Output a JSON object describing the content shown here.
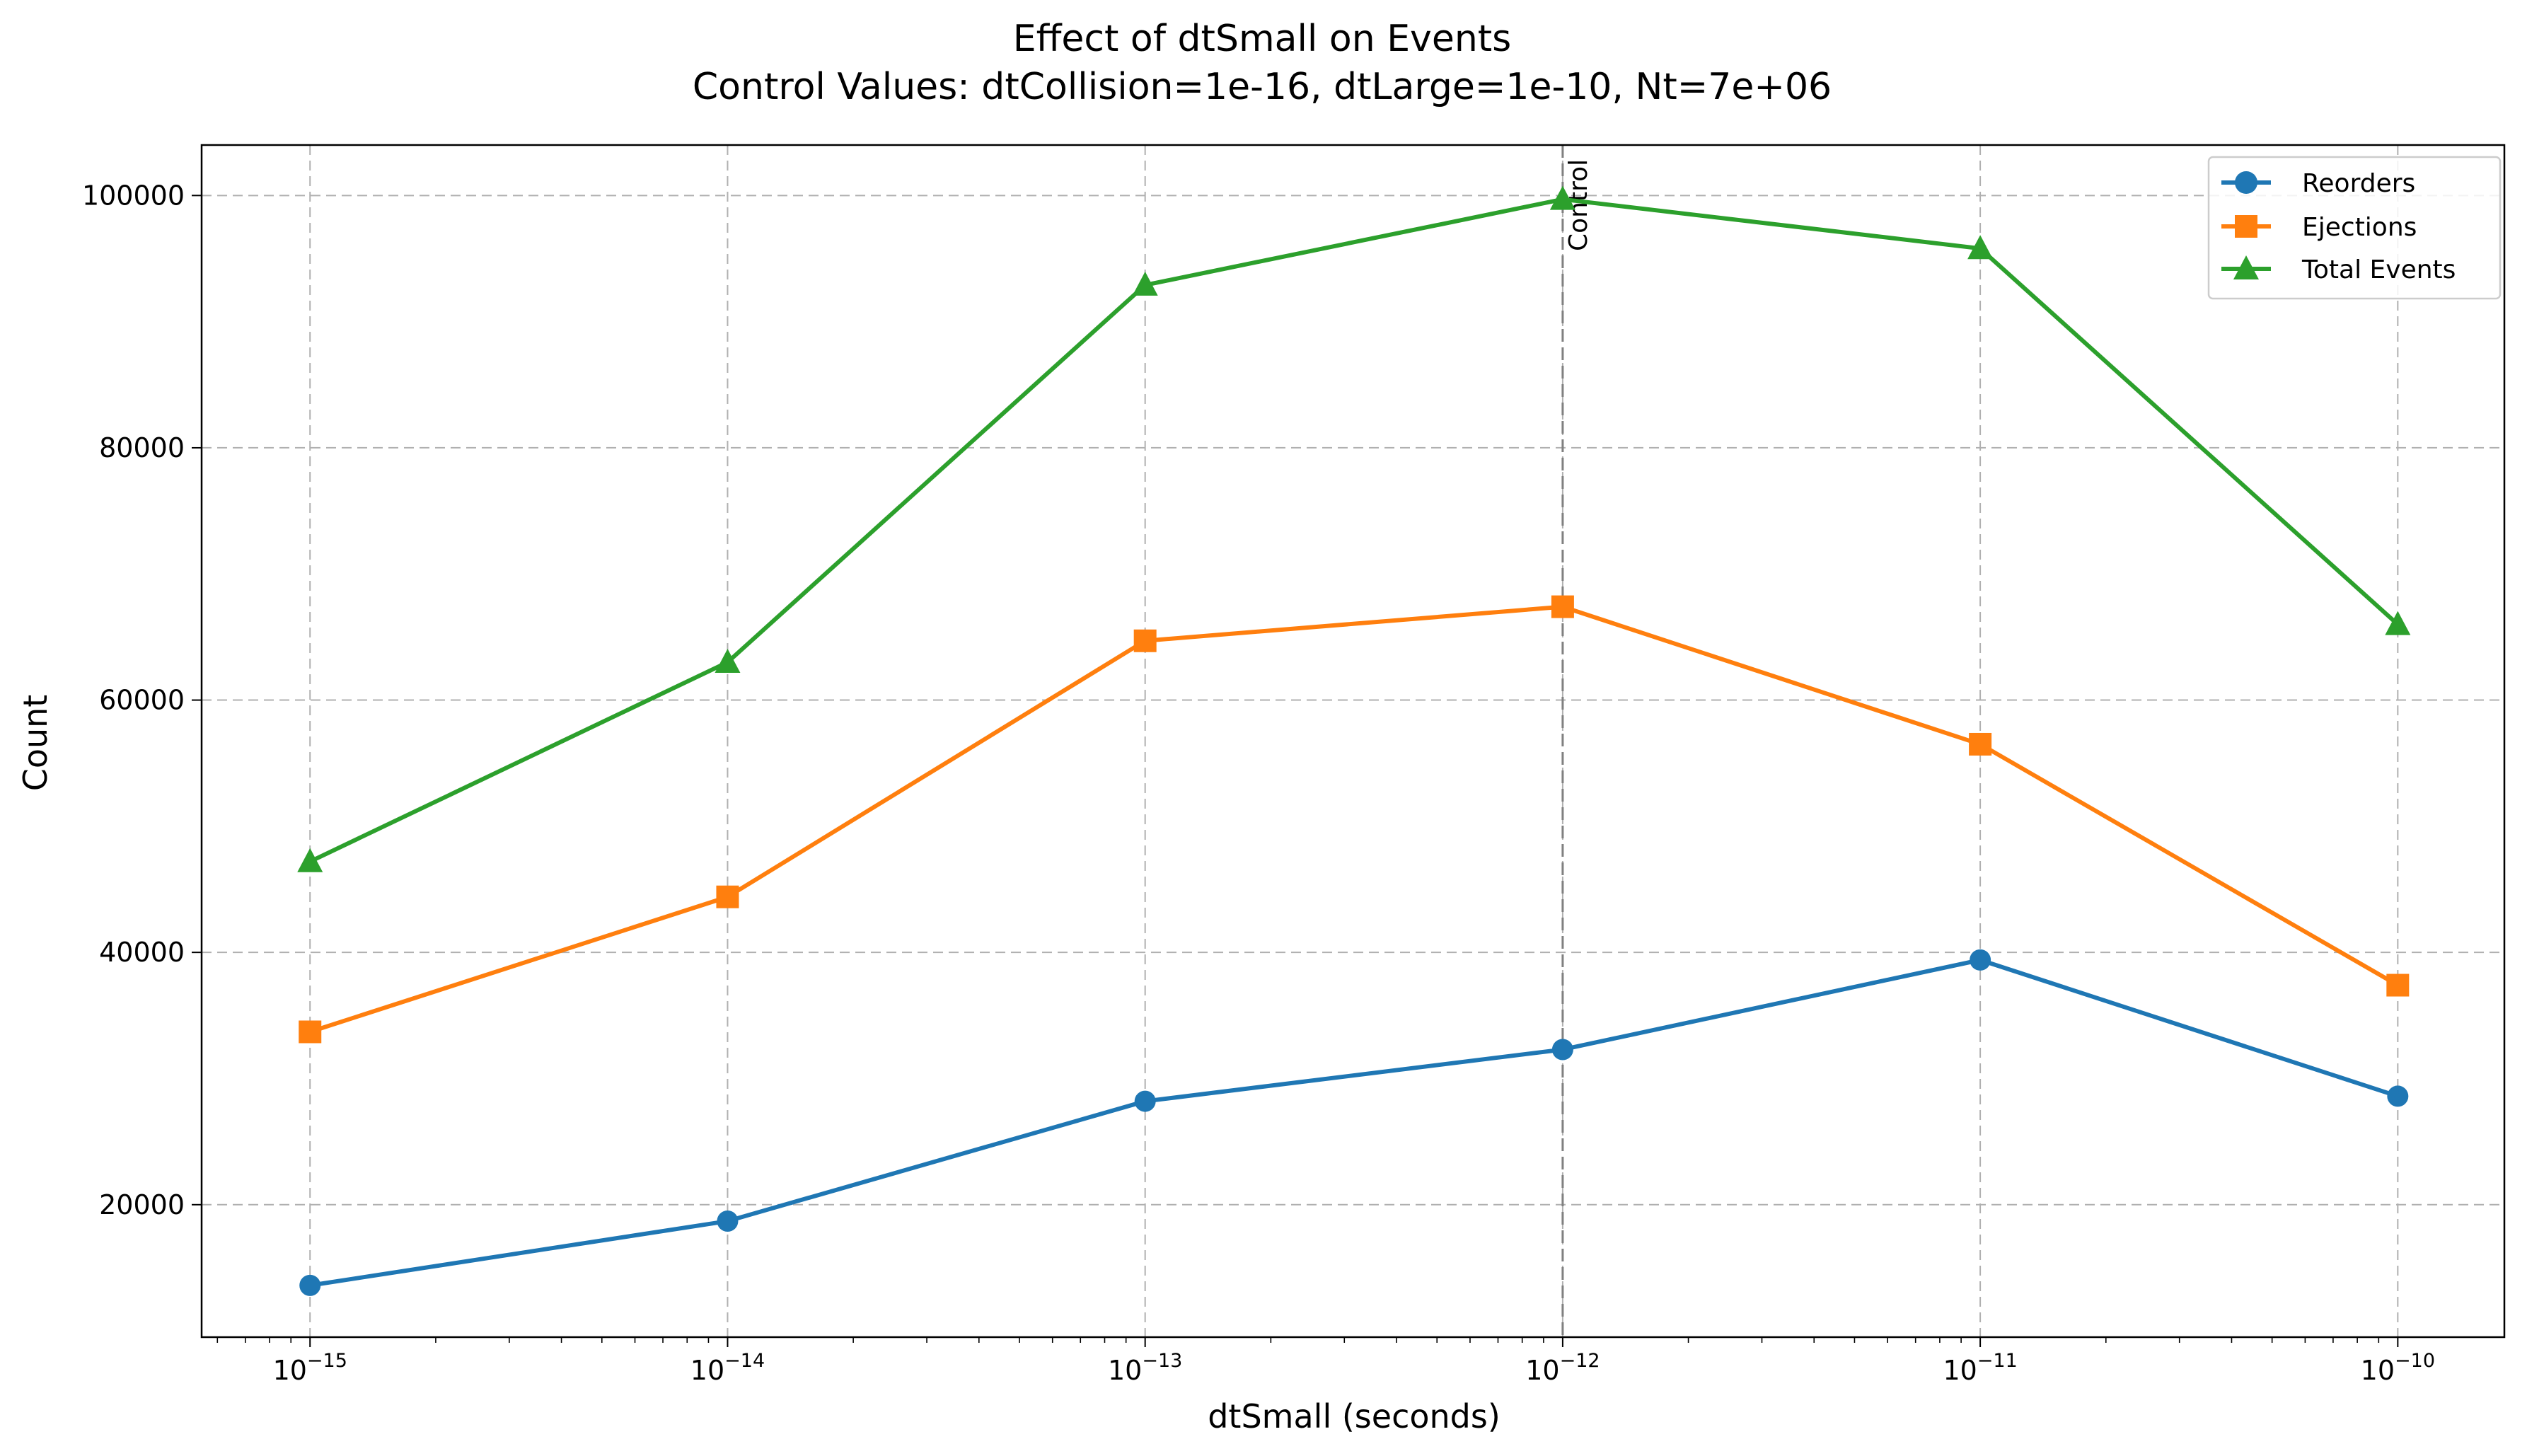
{
  "chart_data": {
    "type": "line",
    "title": "Effect of dtSmall on Events",
    "subtitle": "Control Values: dtCollision=1e-16, dtLarge=1e-10, Nt=7e+06",
    "xlabel": "dtSmall (seconds)",
    "ylabel": "Count",
    "xscale": "log",
    "x": [
      1e-15,
      1e-14,
      1e-13,
      1e-12,
      1e-11,
      1e-10
    ],
    "x_tick_bases": [
      "10",
      "10",
      "10",
      "10",
      "10",
      "10"
    ],
    "x_tick_exponents": [
      "−15",
      "−14",
      "−13",
      "−12",
      "−11",
      "−10"
    ],
    "xlim": [
      5.5e-16,
      1.8e-10
    ],
    "ylim": [
      9500,
      104000
    ],
    "y_ticks": [
      20000,
      40000,
      60000,
      80000,
      100000
    ],
    "y_tick_labels": [
      "20000",
      "40000",
      "60000",
      "80000",
      "100000"
    ],
    "grid": true,
    "legend_position": "top-right",
    "series": [
      {
        "name": "Reorders",
        "color": "#1f77b4",
        "marker": "circle",
        "values": [
          13600,
          18700,
          28200,
          32300,
          39400,
          28600
        ]
      },
      {
        "name": "Ejections",
        "color": "#ff7f0e",
        "marker": "square",
        "values": [
          33700,
          44400,
          64700,
          67400,
          56500,
          37400
        ]
      },
      {
        "name": "Total Events",
        "color": "#2ca02c",
        "marker": "triangle",
        "values": [
          47200,
          63000,
          92900,
          99700,
          95800,
          66000
        ]
      }
    ],
    "annotations": [
      {
        "text": "Control",
        "x": 1e-12
      }
    ]
  }
}
